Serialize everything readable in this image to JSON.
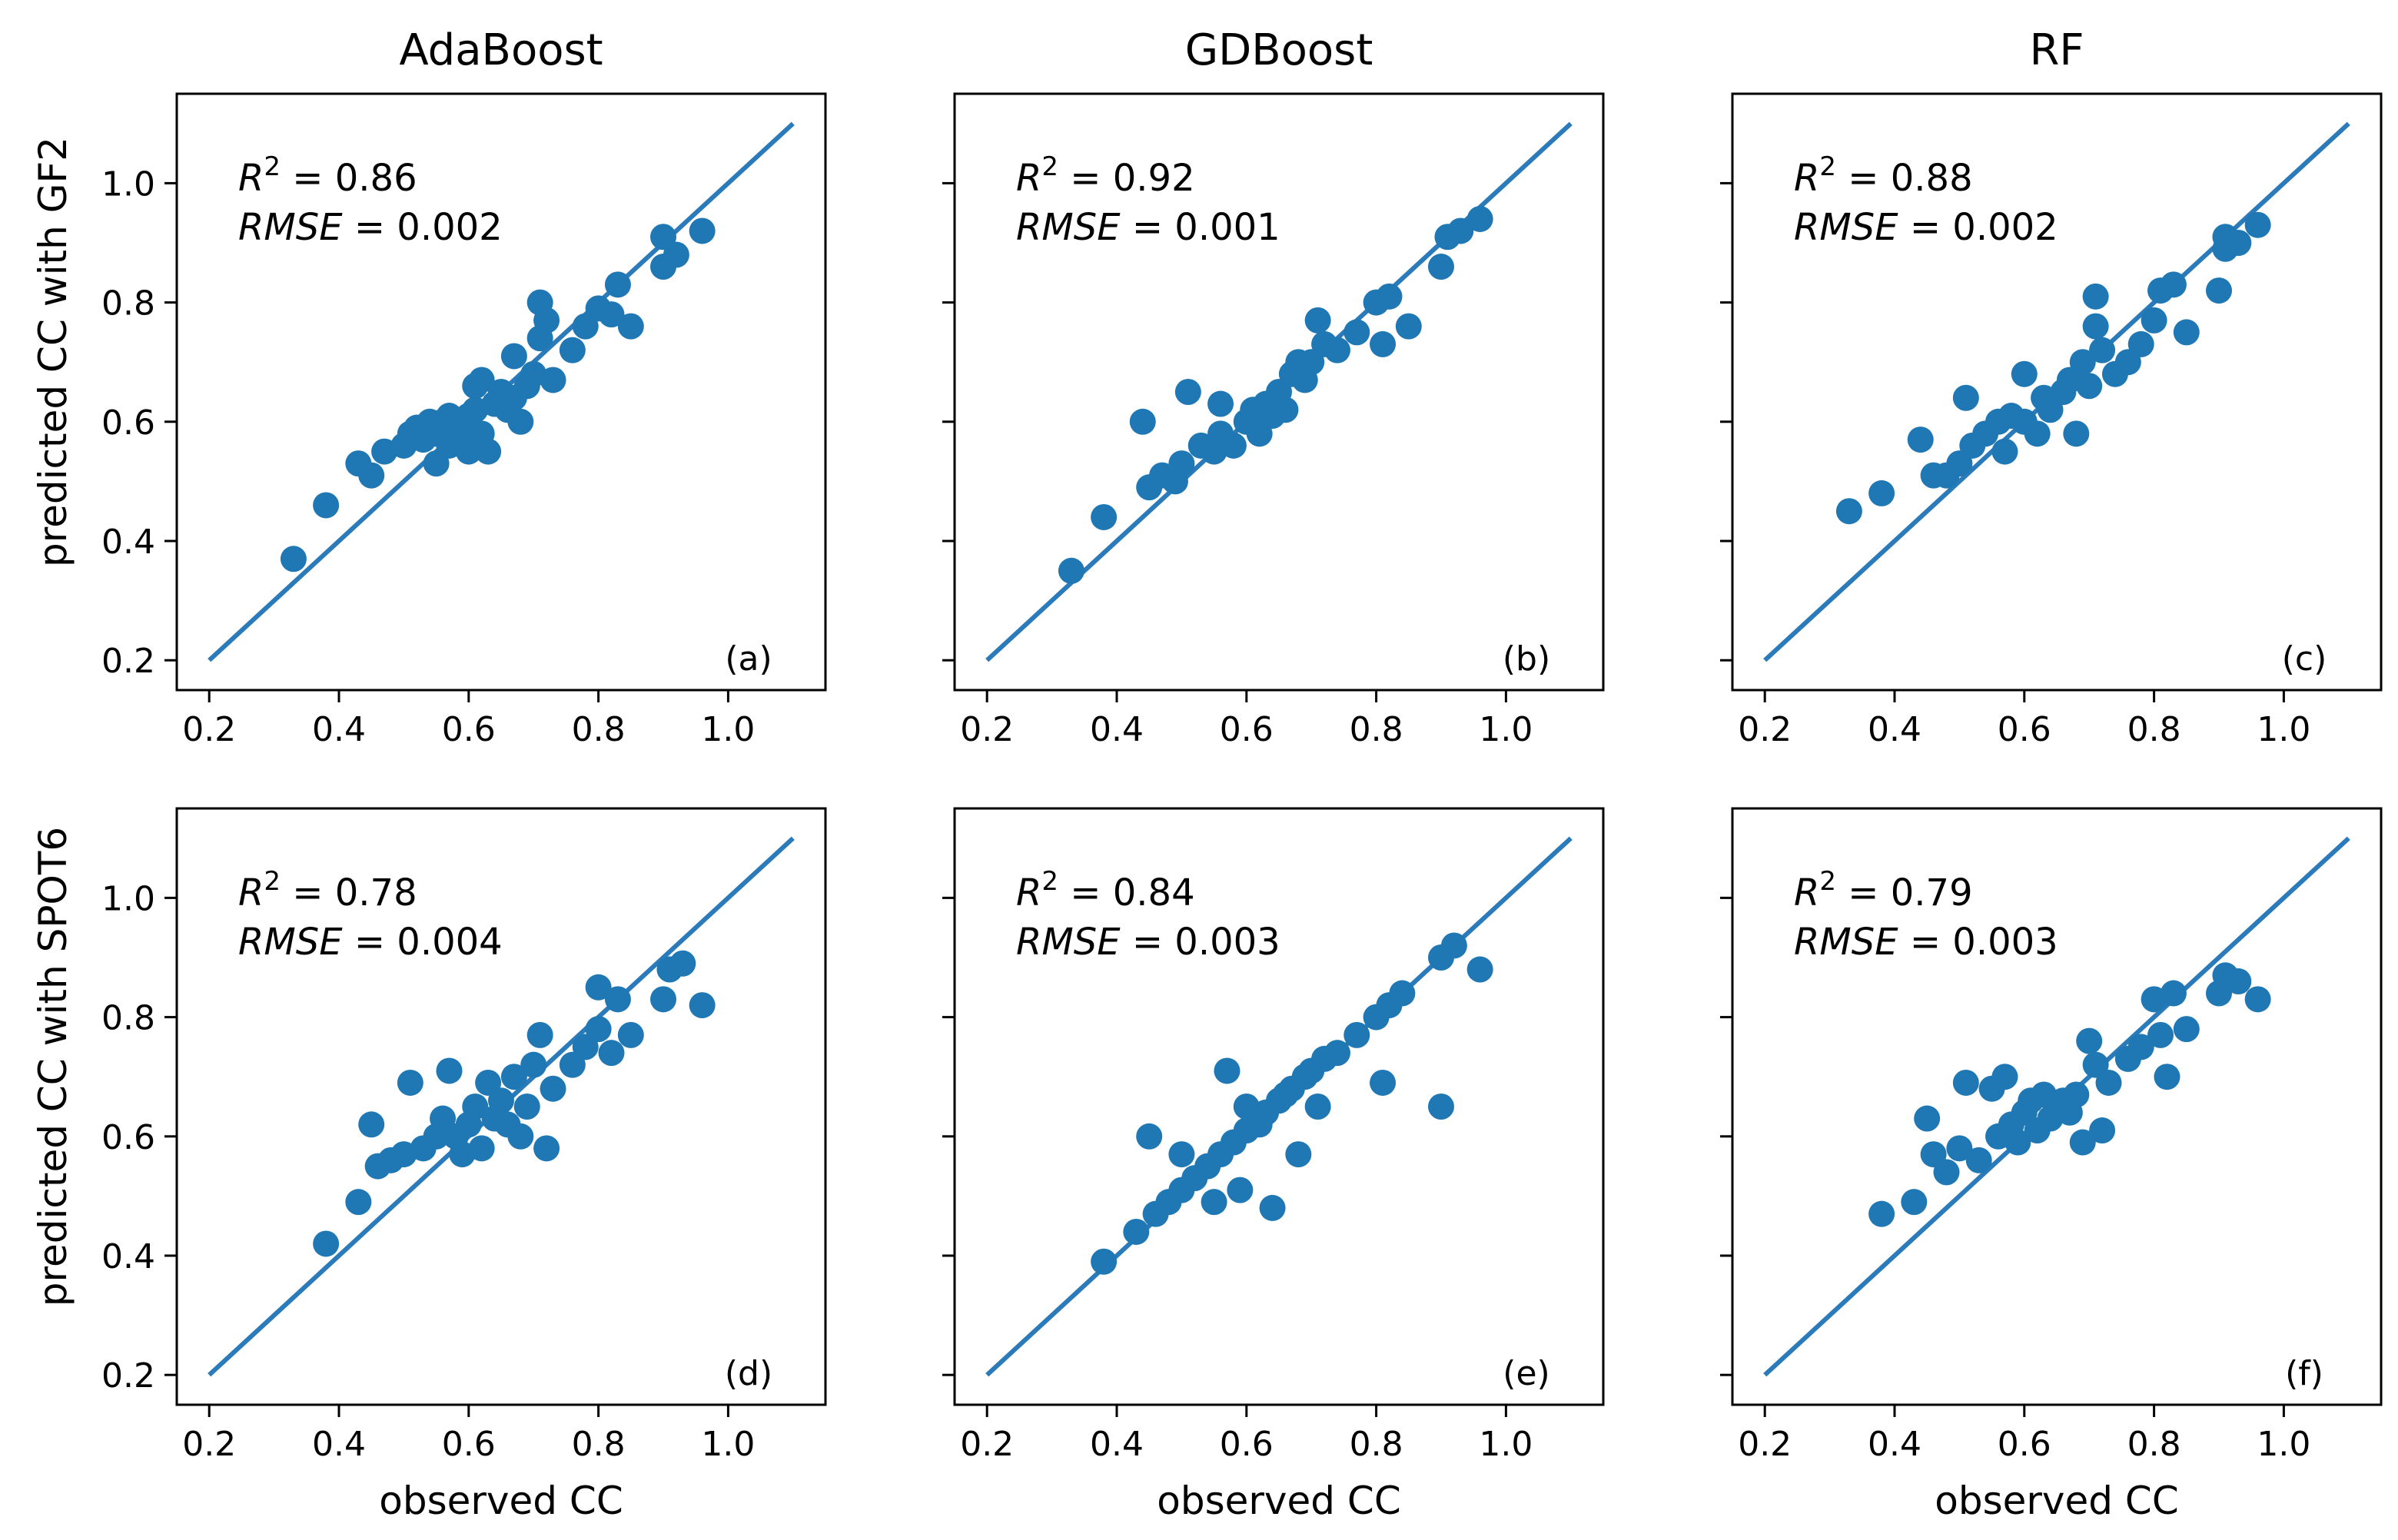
{
  "figure": {
    "columns": [
      "AdaBoost",
      "GDBoost",
      "RF"
    ],
    "row_ylabels": [
      "predicted CC with GF2",
      "predicted CC with SPOT6"
    ],
    "xlabel": "observed CC"
  },
  "colors": {
    "points": "#1f77b4",
    "line": "#2b7bba"
  },
  "chart_data": [
    {
      "type": "scatter",
      "tag": "(a)",
      "model": "AdaBoost",
      "sensor": "GF2",
      "r2": "0.86",
      "rmse": "0.002",
      "xlim": [
        0.15,
        1.15
      ],
      "ylim": [
        0.15,
        1.15
      ],
      "xticks": [
        "0.2",
        "0.4",
        "0.6",
        "0.8",
        "1.0"
      ],
      "yticks": [
        "0.2",
        "0.4",
        "0.6",
        "0.8",
        "1.0"
      ],
      "line": [
        [
          0.2,
          0.2
        ],
        [
          1.1,
          1.1
        ]
      ],
      "points": [
        [
          0.33,
          0.37
        ],
        [
          0.38,
          0.46
        ],
        [
          0.43,
          0.53
        ],
        [
          0.45,
          0.51
        ],
        [
          0.47,
          0.55
        ],
        [
          0.5,
          0.56
        ],
        [
          0.51,
          0.58
        ],
        [
          0.52,
          0.59
        ],
        [
          0.53,
          0.57
        ],
        [
          0.54,
          0.6
        ],
        [
          0.55,
          0.58
        ],
        [
          0.55,
          0.53
        ],
        [
          0.56,
          0.6
        ],
        [
          0.57,
          0.61
        ],
        [
          0.57,
          0.56
        ],
        [
          0.58,
          0.59
        ],
        [
          0.59,
          0.57
        ],
        [
          0.6,
          0.61
        ],
        [
          0.6,
          0.55
        ],
        [
          0.61,
          0.62
        ],
        [
          0.61,
          0.66
        ],
        [
          0.62,
          0.58
        ],
        [
          0.62,
          0.67
        ],
        [
          0.63,
          0.55
        ],
        [
          0.64,
          0.63
        ],
        [
          0.65,
          0.65
        ],
        [
          0.66,
          0.62
        ],
        [
          0.67,
          0.64
        ],
        [
          0.67,
          0.71
        ],
        [
          0.68,
          0.6
        ],
        [
          0.69,
          0.66
        ],
        [
          0.7,
          0.68
        ],
        [
          0.71,
          0.74
        ],
        [
          0.71,
          0.8
        ],
        [
          0.72,
          0.77
        ],
        [
          0.73,
          0.67
        ],
        [
          0.76,
          0.72
        ],
        [
          0.78,
          0.76
        ],
        [
          0.8,
          0.79
        ],
        [
          0.82,
          0.78
        ],
        [
          0.83,
          0.83
        ],
        [
          0.85,
          0.76
        ],
        [
          0.9,
          0.86
        ],
        [
          0.9,
          0.91
        ],
        [
          0.92,
          0.88
        ],
        [
          0.96,
          0.92
        ]
      ]
    },
    {
      "type": "scatter",
      "tag": "(b)",
      "model": "GDBoost",
      "sensor": "GF2",
      "r2": "0.92",
      "rmse": "0.001",
      "xlim": [
        0.15,
        1.15
      ],
      "ylim": [
        0.15,
        1.15
      ],
      "xticks": [
        "0.2",
        "0.4",
        "0.6",
        "0.8",
        "1.0"
      ],
      "yticks": [
        "0.2",
        "0.4",
        "0.6",
        "0.8",
        "1.0"
      ],
      "line": [
        [
          0.2,
          0.2
        ],
        [
          1.1,
          1.1
        ]
      ],
      "points": [
        [
          0.33,
          0.35
        ],
        [
          0.38,
          0.44
        ],
        [
          0.44,
          0.6
        ],
        [
          0.45,
          0.49
        ],
        [
          0.47,
          0.51
        ],
        [
          0.49,
          0.5
        ],
        [
          0.5,
          0.53
        ],
        [
          0.51,
          0.65
        ],
        [
          0.53,
          0.56
        ],
        [
          0.55,
          0.55
        ],
        [
          0.56,
          0.58
        ],
        [
          0.56,
          0.63
        ],
        [
          0.58,
          0.56
        ],
        [
          0.6,
          0.6
        ],
        [
          0.61,
          0.62
        ],
        [
          0.62,
          0.58
        ],
        [
          0.63,
          0.63
        ],
        [
          0.64,
          0.61
        ],
        [
          0.65,
          0.65
        ],
        [
          0.66,
          0.62
        ],
        [
          0.67,
          0.68
        ],
        [
          0.68,
          0.7
        ],
        [
          0.69,
          0.67
        ],
        [
          0.7,
          0.7
        ],
        [
          0.71,
          0.77
        ],
        [
          0.72,
          0.73
        ],
        [
          0.74,
          0.72
        ],
        [
          0.77,
          0.75
        ],
        [
          0.8,
          0.8
        ],
        [
          0.81,
          0.73
        ],
        [
          0.82,
          0.81
        ],
        [
          0.85,
          0.76
        ],
        [
          0.9,
          0.86
        ],
        [
          0.91,
          0.91
        ],
        [
          0.93,
          0.92
        ],
        [
          0.96,
          0.94
        ]
      ]
    },
    {
      "type": "scatter",
      "tag": "(c)",
      "model": "RF",
      "sensor": "GF2",
      "r2": "0.88",
      "rmse": "0.002",
      "xlim": [
        0.15,
        1.15
      ],
      "ylim": [
        0.15,
        1.15
      ],
      "xticks": [
        "0.2",
        "0.4",
        "0.6",
        "0.8",
        "1.0"
      ],
      "yticks": [
        "0.2",
        "0.4",
        "0.6",
        "0.8",
        "1.0"
      ],
      "line": [
        [
          0.2,
          0.2
        ],
        [
          1.1,
          1.1
        ]
      ],
      "points": [
        [
          0.33,
          0.45
        ],
        [
          0.38,
          0.48
        ],
        [
          0.44,
          0.57
        ],
        [
          0.46,
          0.51
        ],
        [
          0.48,
          0.51
        ],
        [
          0.5,
          0.53
        ],
        [
          0.51,
          0.64
        ],
        [
          0.52,
          0.56
        ],
        [
          0.54,
          0.58
        ],
        [
          0.56,
          0.6
        ],
        [
          0.57,
          0.55
        ],
        [
          0.58,
          0.61
        ],
        [
          0.6,
          0.6
        ],
        [
          0.6,
          0.68
        ],
        [
          0.62,
          0.58
        ],
        [
          0.63,
          0.64
        ],
        [
          0.64,
          0.62
        ],
        [
          0.66,
          0.65
        ],
        [
          0.67,
          0.67
        ],
        [
          0.68,
          0.58
        ],
        [
          0.69,
          0.7
        ],
        [
          0.7,
          0.66
        ],
        [
          0.71,
          0.76
        ],
        [
          0.71,
          0.81
        ],
        [
          0.72,
          0.72
        ],
        [
          0.74,
          0.68
        ],
        [
          0.76,
          0.7
        ],
        [
          0.78,
          0.73
        ],
        [
          0.8,
          0.77
        ],
        [
          0.81,
          0.82
        ],
        [
          0.83,
          0.83
        ],
        [
          0.85,
          0.75
        ],
        [
          0.9,
          0.82
        ],
        [
          0.91,
          0.89
        ],
        [
          0.91,
          0.91
        ],
        [
          0.93,
          0.9
        ],
        [
          0.96,
          0.93
        ]
      ]
    },
    {
      "type": "scatter",
      "tag": "(d)",
      "model": "AdaBoost",
      "sensor": "SPOT6",
      "r2": "0.78",
      "rmse": "0.004",
      "xlim": [
        0.15,
        1.15
      ],
      "ylim": [
        0.15,
        1.15
      ],
      "xticks": [
        "0.2",
        "0.4",
        "0.6",
        "0.8",
        "1.0"
      ],
      "yticks": [
        "0.2",
        "0.4",
        "0.6",
        "0.8",
        "1.0"
      ],
      "line": [
        [
          0.2,
          0.2
        ],
        [
          1.1,
          1.1
        ]
      ],
      "points": [
        [
          0.38,
          0.42
        ],
        [
          0.43,
          0.49
        ],
        [
          0.45,
          0.62
        ],
        [
          0.46,
          0.55
        ],
        [
          0.48,
          0.56
        ],
        [
          0.5,
          0.57
        ],
        [
          0.51,
          0.69
        ],
        [
          0.53,
          0.58
        ],
        [
          0.55,
          0.6
        ],
        [
          0.56,
          0.63
        ],
        [
          0.57,
          0.71
        ],
        [
          0.58,
          0.6
        ],
        [
          0.59,
          0.57
        ],
        [
          0.6,
          0.62
        ],
        [
          0.61,
          0.65
        ],
        [
          0.62,
          0.58
        ],
        [
          0.63,
          0.69
        ],
        [
          0.64,
          0.63
        ],
        [
          0.65,
          0.66
        ],
        [
          0.66,
          0.62
        ],
        [
          0.67,
          0.7
        ],
        [
          0.68,
          0.6
        ],
        [
          0.69,
          0.65
        ],
        [
          0.7,
          0.72
        ],
        [
          0.71,
          0.77
        ],
        [
          0.72,
          0.58
        ],
        [
          0.73,
          0.68
        ],
        [
          0.76,
          0.72
        ],
        [
          0.78,
          0.75
        ],
        [
          0.8,
          0.85
        ],
        [
          0.8,
          0.78
        ],
        [
          0.82,
          0.74
        ],
        [
          0.83,
          0.83
        ],
        [
          0.85,
          0.77
        ],
        [
          0.9,
          0.83
        ],
        [
          0.91,
          0.88
        ],
        [
          0.93,
          0.89
        ],
        [
          0.96,
          0.82
        ]
      ]
    },
    {
      "type": "scatter",
      "tag": "(e)",
      "model": "GDBoost",
      "sensor": "SPOT6",
      "r2": "0.84",
      "rmse": "0.003",
      "xlim": [
        0.15,
        1.15
      ],
      "ylim": [
        0.15,
        1.15
      ],
      "xticks": [
        "0.2",
        "0.4",
        "0.6",
        "0.8",
        "1.0"
      ],
      "yticks": [
        "0.2",
        "0.4",
        "0.6",
        "0.8",
        "1.0"
      ],
      "line": [
        [
          0.2,
          0.2
        ],
        [
          1.1,
          1.1
        ]
      ],
      "points": [
        [
          0.38,
          0.39
        ],
        [
          0.43,
          0.44
        ],
        [
          0.45,
          0.6
        ],
        [
          0.46,
          0.47
        ],
        [
          0.48,
          0.49
        ],
        [
          0.5,
          0.51
        ],
        [
          0.5,
          0.57
        ],
        [
          0.52,
          0.53
        ],
        [
          0.54,
          0.55
        ],
        [
          0.55,
          0.49
        ],
        [
          0.56,
          0.57
        ],
        [
          0.57,
          0.71
        ],
        [
          0.58,
          0.59
        ],
        [
          0.59,
          0.51
        ],
        [
          0.6,
          0.61
        ],
        [
          0.6,
          0.65
        ],
        [
          0.62,
          0.62
        ],
        [
          0.63,
          0.64
        ],
        [
          0.64,
          0.48
        ],
        [
          0.65,
          0.66
        ],
        [
          0.66,
          0.67
        ],
        [
          0.67,
          0.68
        ],
        [
          0.68,
          0.57
        ],
        [
          0.69,
          0.7
        ],
        [
          0.7,
          0.71
        ],
        [
          0.71,
          0.65
        ],
        [
          0.72,
          0.73
        ],
        [
          0.74,
          0.74
        ],
        [
          0.77,
          0.77
        ],
        [
          0.8,
          0.8
        ],
        [
          0.81,
          0.69
        ],
        [
          0.82,
          0.82
        ],
        [
          0.84,
          0.84
        ],
        [
          0.9,
          0.9
        ],
        [
          0.9,
          0.65
        ],
        [
          0.92,
          0.92
        ],
        [
          0.96,
          0.88
        ]
      ]
    },
    {
      "type": "scatter",
      "tag": "(f)",
      "model": "RF",
      "sensor": "SPOT6",
      "r2": "0.79",
      "rmse": "0.003",
      "xlim": [
        0.15,
        1.15
      ],
      "ylim": [
        0.15,
        1.15
      ],
      "xticks": [
        "0.2",
        "0.4",
        "0.6",
        "0.8",
        "1.0"
      ],
      "yticks": [
        "0.2",
        "0.4",
        "0.6",
        "0.8",
        "1.0"
      ],
      "line": [
        [
          0.2,
          0.2
        ],
        [
          1.1,
          1.1
        ]
      ],
      "points": [
        [
          0.38,
          0.47
        ],
        [
          0.43,
          0.49
        ],
        [
          0.45,
          0.63
        ],
        [
          0.46,
          0.57
        ],
        [
          0.48,
          0.54
        ],
        [
          0.5,
          0.58
        ],
        [
          0.51,
          0.69
        ],
        [
          0.53,
          0.56
        ],
        [
          0.55,
          0.68
        ],
        [
          0.56,
          0.6
        ],
        [
          0.57,
          0.7
        ],
        [
          0.58,
          0.62
        ],
        [
          0.59,
          0.59
        ],
        [
          0.6,
          0.64
        ],
        [
          0.61,
          0.66
        ],
        [
          0.62,
          0.61
        ],
        [
          0.63,
          0.67
        ],
        [
          0.64,
          0.63
        ],
        [
          0.65,
          0.65
        ],
        [
          0.66,
          0.66
        ],
        [
          0.67,
          0.64
        ],
        [
          0.68,
          0.67
        ],
        [
          0.69,
          0.59
        ],
        [
          0.7,
          0.76
        ],
        [
          0.71,
          0.72
        ],
        [
          0.72,
          0.61
        ],
        [
          0.73,
          0.69
        ],
        [
          0.76,
          0.73
        ],
        [
          0.78,
          0.75
        ],
        [
          0.8,
          0.83
        ],
        [
          0.81,
          0.77
        ],
        [
          0.82,
          0.7
        ],
        [
          0.83,
          0.84
        ],
        [
          0.85,
          0.78
        ],
        [
          0.9,
          0.84
        ],
        [
          0.91,
          0.87
        ],
        [
          0.93,
          0.86
        ],
        [
          0.96,
          0.83
        ]
      ]
    }
  ]
}
